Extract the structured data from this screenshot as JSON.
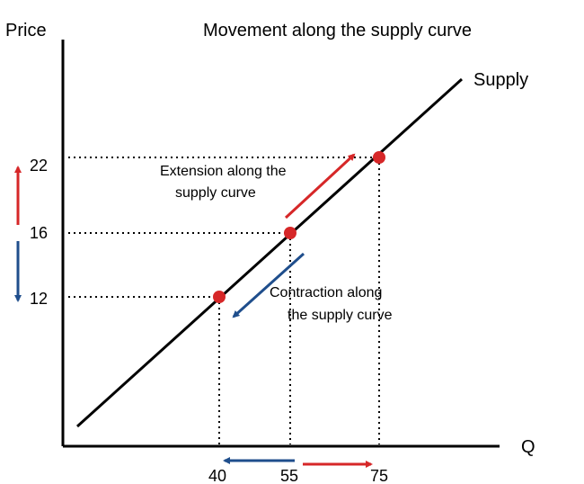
{
  "chart_data": {
    "type": "line",
    "title": "Movement along the supply curve",
    "ylabel": "Price",
    "xlabel": "Q",
    "series": [
      {
        "name": "Supply",
        "x": [
          -12,
          90
        ],
        "y": [
          -4.8,
          30
        ]
      }
    ],
    "points": [
      {
        "x": 40,
        "y": 12
      },
      {
        "x": 55,
        "y": 16
      },
      {
        "x": 75,
        "y": 22
      }
    ],
    "x_ticks": [
      "40",
      "55",
      "75"
    ],
    "y_ticks": [
      "12",
      "16",
      "22"
    ],
    "annotations": [
      {
        "lines": [
          "Extension along the",
          "supply curve"
        ],
        "color": "#d62728"
      },
      {
        "lines": [
          "Contraction along",
          "the supply curve"
        ],
        "color": "#1f4e8c"
      }
    ],
    "colors": {
      "extension": "#d62728",
      "contraction": "#1f4e8c",
      "curve": "#000000",
      "guides": "#000000"
    },
    "grid": false,
    "legend": "none"
  }
}
